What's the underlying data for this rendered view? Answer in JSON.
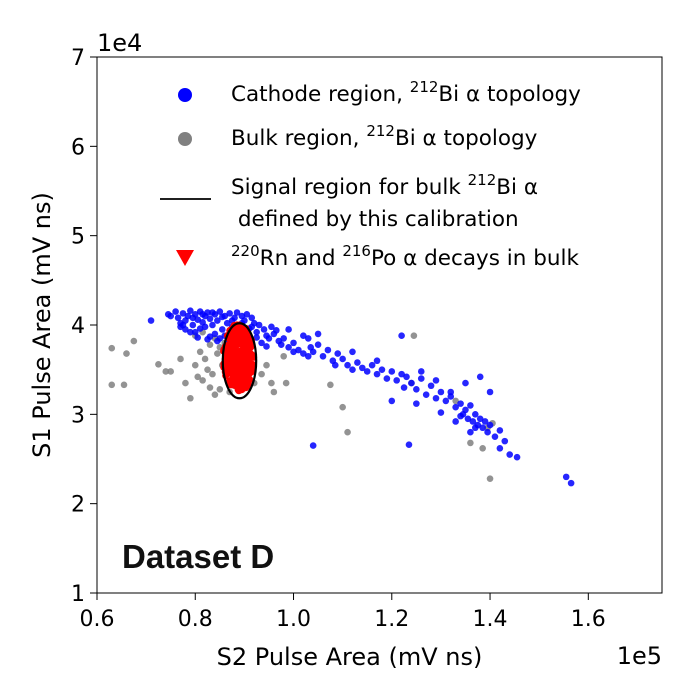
{
  "chart_data": {
    "type": "scatter",
    "xlabel": "S2 Pulse Area (mV ns)",
    "ylabel": "S1 Pulse Area (mV ns)",
    "x_exponent_label": "1e5",
    "y_exponent_label": "1e4",
    "xlim": [
      0.6,
      1.75
    ],
    "ylim": [
      1.0,
      7.0
    ],
    "xticks": [
      "0.6",
      "0.8",
      "1.0",
      "1.2",
      "1.4",
      "1.6"
    ],
    "yticks": [
      "1",
      "2",
      "3",
      "4",
      "5",
      "6",
      "7"
    ],
    "annotation": "Dataset D",
    "legend_placement": "top-right",
    "legend": [
      {
        "kind": "dot",
        "color": "#0000ff",
        "pre": "Cathode region, ",
        "sup": "212",
        "post": "Bi α topology"
      },
      {
        "kind": "dot",
        "color": "#808080",
        "pre": "Bulk region, ",
        "sup": "212",
        "post": "Bi α topology"
      },
      {
        "kind": "line",
        "color": "#000000",
        "pre": "Signal region for bulk ",
        "sup": "212",
        "post": "Bi α",
        "line2": " defined by this calibration"
      },
      {
        "kind": "triangle",
        "color": "#ff0000",
        "sup1": "220",
        "mid1": "Rn and ",
        "sup2": "216",
        "post": "Po α decays in bulk"
      }
    ],
    "series": [
      {
        "name": "Cathode region, 212Bi α topology",
        "color": "#0000ff",
        "points": [
          [
            0.71,
            4.05
          ],
          [
            0.745,
            4.12
          ],
          [
            0.75,
            4.1
          ],
          [
            0.76,
            4.15
          ],
          [
            0.765,
            4.08
          ],
          [
            0.77,
            4.02
          ],
          [
            0.775,
            4.13
          ],
          [
            0.78,
            4.05
          ],
          [
            0.785,
            4.1
          ],
          [
            0.79,
            4.16
          ],
          [
            0.795,
            4.0
          ],
          [
            0.8,
            4.12
          ],
          [
            0.805,
            4.06
          ],
          [
            0.81,
            4.15
          ],
          [
            0.815,
            4.03
          ],
          [
            0.82,
            4.1
          ],
          [
            0.825,
            4.14
          ],
          [
            0.83,
            4.07
          ],
          [
            0.835,
            4.0
          ],
          [
            0.84,
            4.12
          ],
          [
            0.845,
            4.05
          ],
          [
            0.85,
            4.15
          ],
          [
            0.855,
            3.95
          ],
          [
            0.86,
            4.1
          ],
          [
            0.865,
            4.02
          ],
          [
            0.87,
            4.13
          ],
          [
            0.875,
            3.98
          ],
          [
            0.88,
            4.08
          ],
          [
            0.885,
            4.14
          ],
          [
            0.89,
            4.0
          ],
          [
            0.895,
            4.1
          ],
          [
            0.9,
            4.05
          ],
          [
            0.905,
            4.12
          ],
          [
            0.91,
            3.96
          ],
          [
            0.915,
            4.08
          ],
          [
            0.92,
            4.02
          ],
          [
            0.78,
            3.95
          ],
          [
            0.8,
            3.92
          ],
          [
            0.82,
            3.98
          ],
          [
            0.84,
            3.9
          ],
          [
            0.86,
            3.88
          ],
          [
            0.88,
            3.93
          ],
          [
            0.9,
            3.9
          ],
          [
            0.77,
            3.98
          ],
          [
            0.79,
            3.92
          ],
          [
            0.81,
            3.96
          ],
          [
            0.83,
            3.87
          ],
          [
            0.85,
            3.85
          ],
          [
            0.87,
            3.82
          ],
          [
            0.89,
            3.85
          ],
          [
            0.775,
            4.0
          ],
          [
            0.795,
            4.08
          ],
          [
            0.815,
            4.12
          ],
          [
            0.835,
            4.14
          ],
          [
            0.855,
            4.09
          ],
          [
            0.875,
            4.05
          ],
          [
            0.895,
            4.02
          ],
          [
            0.915,
            3.98
          ],
          [
            0.805,
            3.86
          ],
          [
            0.825,
            3.84
          ],
          [
            0.845,
            3.82
          ],
          [
            0.865,
            3.78
          ],
          [
            0.885,
            3.8
          ],
          [
            0.905,
            3.84
          ],
          [
            0.925,
            3.92
          ],
          [
            0.93,
            4.0
          ],
          [
            0.94,
            3.95
          ],
          [
            0.945,
            3.88
          ],
          [
            0.95,
            3.85
          ],
          [
            0.96,
            3.9
          ],
          [
            0.97,
            3.82
          ],
          [
            0.975,
            3.78
          ],
          [
            0.98,
            3.85
          ],
          [
            0.99,
            3.75
          ],
          [
            1.0,
            3.8
          ],
          [
            1.01,
            3.72
          ],
          [
            1.02,
            3.68
          ],
          [
            1.03,
            3.85
          ],
          [
            1.035,
            3.75
          ],
          [
            1.04,
            3.7
          ],
          [
            1.05,
            3.78
          ],
          [
            1.06,
            3.65
          ],
          [
            1.07,
            3.72
          ],
          [
            1.08,
            3.6
          ],
          [
            1.09,
            3.68
          ],
          [
            1.1,
            3.62
          ],
          [
            1.11,
            3.55
          ],
          [
            1.12,
            3.7
          ],
          [
            1.13,
            3.58
          ],
          [
            1.14,
            3.52
          ],
          [
            1.15,
            3.48
          ],
          [
            1.16,
            3.55
          ],
          [
            1.17,
            3.45
          ],
          [
            1.18,
            3.5
          ],
          [
            1.19,
            3.4
          ],
          [
            1.2,
            3.48
          ],
          [
            1.21,
            3.38
          ],
          [
            1.22,
            3.45
          ],
          [
            1.225,
            3.3
          ],
          [
            1.23,
            3.42
          ],
          [
            1.24,
            3.35
          ],
          [
            1.25,
            3.28
          ],
          [
            1.26,
            3.4
          ],
          [
            1.27,
            3.22
          ],
          [
            1.28,
            3.32
          ],
          [
            1.29,
            3.18
          ],
          [
            1.3,
            3.25
          ],
          [
            1.31,
            3.15
          ],
          [
            1.32,
            3.2
          ],
          [
            1.33,
            3.08
          ],
          [
            1.34,
            3.12
          ],
          [
            1.345,
            3.0
          ],
          [
            1.35,
            3.05
          ],
          [
            1.355,
            2.95
          ],
          [
            1.36,
            3.1
          ],
          [
            1.365,
            2.92
          ],
          [
            1.37,
            3.0
          ],
          [
            1.375,
            2.88
          ],
          [
            1.38,
            2.95
          ],
          [
            1.385,
            2.85
          ],
          [
            1.39,
            2.92
          ],
          [
            1.395,
            2.8
          ],
          [
            1.4,
            2.88
          ],
          [
            1.41,
            2.75
          ],
          [
            1.42,
            2.82
          ],
          [
            1.43,
            2.7
          ],
          [
            1.44,
            2.55
          ],
          [
            1.455,
            2.52
          ],
          [
            1.555,
            2.3
          ],
          [
            1.565,
            2.23
          ],
          [
            1.04,
            2.65
          ],
          [
            1.235,
            2.66
          ],
          [
            1.2,
            3.15
          ],
          [
            1.25,
            3.12
          ],
          [
            1.32,
            3.25
          ],
          [
            1.35,
            3.35
          ],
          [
            1.4,
            3.25
          ],
          [
            1.38,
            3.42
          ],
          [
            1.12,
            3.5
          ],
          [
            1.085,
            3.55
          ],
          [
            1.05,
            3.9
          ],
          [
            1.03,
            3.65
          ],
          [
            1.0,
            3.7
          ],
          [
            0.99,
            3.95
          ],
          [
            1.02,
            3.88
          ],
          [
            0.955,
            3.98
          ],
          [
            0.965,
            3.94
          ],
          [
            0.925,
            3.86
          ],
          [
            0.935,
            3.8
          ],
          [
            0.945,
            3.76
          ],
          [
            1.22,
            3.88
          ],
          [
            1.17,
            3.6
          ],
          [
            1.26,
            3.48
          ],
          [
            1.29,
            3.38
          ],
          [
            1.3,
            3.02
          ],
          [
            1.33,
            2.92
          ],
          [
            1.36,
            2.8
          ],
          [
            1.34,
            2.98
          ],
          [
            1.37,
            2.85
          ],
          [
            1.42,
            2.62
          ]
        ]
      },
      {
        "name": "Bulk region, 212Bi α topology",
        "color": "#808080",
        "points": [
          [
            0.63,
            3.74
          ],
          [
            0.63,
            3.33
          ],
          [
            0.655,
            3.33
          ],
          [
            0.66,
            3.68
          ],
          [
            0.675,
            3.82
          ],
          [
            0.725,
            3.56
          ],
          [
            0.74,
            3.48
          ],
          [
            0.75,
            3.48
          ],
          [
            0.77,
            3.62
          ],
          [
            0.78,
            3.35
          ],
          [
            0.79,
            3.18
          ],
          [
            0.8,
            3.55
          ],
          [
            0.805,
            3.42
          ],
          [
            0.81,
            3.7
          ],
          [
            0.815,
            3.38
          ],
          [
            0.82,
            3.62
          ],
          [
            0.825,
            3.5
          ],
          [
            0.83,
            3.3
          ],
          [
            0.835,
            3.45
          ],
          [
            0.84,
            3.22
          ],
          [
            0.845,
            3.68
          ],
          [
            0.85,
            3.28
          ],
          [
            0.855,
            3.55
          ],
          [
            0.86,
            3.8
          ],
          [
            0.87,
            3.25
          ],
          [
            0.875,
            3.4
          ],
          [
            0.88,
            3.32
          ],
          [
            0.905,
            3.3
          ],
          [
            0.92,
            3.35
          ],
          [
            0.935,
            3.45
          ],
          [
            0.945,
            3.55
          ],
          [
            0.955,
            3.35
          ],
          [
            0.96,
            3.25
          ],
          [
            0.98,
            3.65
          ],
          [
            0.985,
            3.35
          ],
          [
            1.075,
            3.33
          ],
          [
            1.1,
            3.08
          ],
          [
            1.11,
            2.8
          ],
          [
            1.245,
            3.88
          ],
          [
            1.24,
            3.35
          ],
          [
            1.33,
            3.15
          ],
          [
            1.36,
            2.68
          ],
          [
            1.385,
            2.62
          ],
          [
            1.4,
            2.28
          ],
          [
            1.395,
            2.85
          ],
          [
            1.405,
            2.9
          ],
          [
            0.8,
            3.88
          ],
          [
            0.815,
            3.92
          ],
          [
            0.83,
            3.78
          ],
          [
            0.84,
            3.85
          ],
          [
            0.85,
            3.75
          ]
        ]
      },
      {
        "name": "220Rn and 216Po α decays in bulk",
        "color": "#ff0000",
        "cluster": {
          "center": [
            0.888,
            3.63
          ],
          "semi_axes": [
            0.031,
            0.38
          ]
        }
      }
    ],
    "signal_region": {
      "center": [
        0.89,
        3.6
      ],
      "semi_axes": [
        0.034,
        0.42
      ]
    }
  }
}
